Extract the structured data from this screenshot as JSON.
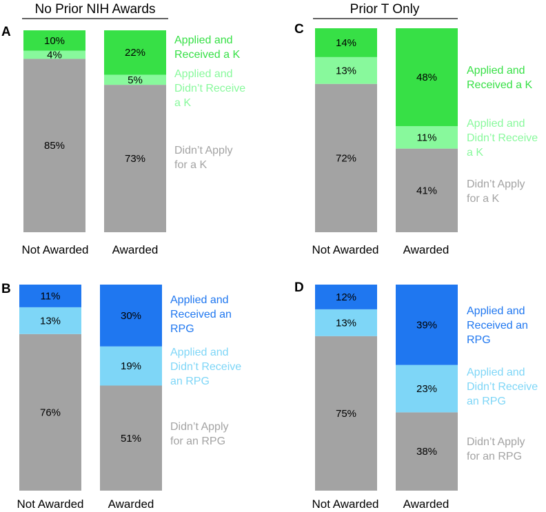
{
  "headers": {
    "left": "No Prior NIH Awards",
    "right": "Prior T Only"
  },
  "chart_data": [
    {
      "panel": "A",
      "type": "bar",
      "stacked": true,
      "categories": [
        "Not Awarded",
        "Awarded"
      ],
      "series": [
        {
          "name": "Didn't Apply for a K",
          "values": [
            85,
            73
          ],
          "color": "#a3a3a3",
          "labels": [
            "85%",
            "73%"
          ]
        },
        {
          "name": "Applied and Didn't Receive a K",
          "values": [
            4,
            5
          ],
          "color": "#88f99c",
          "labels": [
            "4%",
            "5%"
          ]
        },
        {
          "name": "Applied and Received a K",
          "values": [
            10,
            22
          ],
          "color": "#37e046",
          "labels": [
            "10%",
            "22%"
          ]
        }
      ],
      "legend": [
        {
          "lines": [
            "Applied and",
            "Received a K"
          ],
          "color": "#37e046"
        },
        {
          "lines": [
            "Applied and",
            "Didn’t Receive",
            "a K"
          ],
          "color": "#88f99c"
        },
        {
          "lines": [
            "Didn’t Apply",
            "for a K"
          ],
          "color": "#a3a3a3"
        }
      ],
      "ylim": [
        0,
        100
      ]
    },
    {
      "panel": "B",
      "type": "bar",
      "stacked": true,
      "categories": [
        "Not Awarded",
        "Awarded"
      ],
      "series": [
        {
          "name": "Didn't Apply for an RPG",
          "values": [
            76,
            51
          ],
          "color": "#a3a3a3",
          "labels": [
            "76%",
            "51%"
          ]
        },
        {
          "name": "Applied and Didn't Receive an RPG",
          "values": [
            13,
            19
          ],
          "color": "#7ed6f7",
          "labels": [
            "13%",
            "19%"
          ]
        },
        {
          "name": "Applied and Received an RPG",
          "values": [
            11,
            30
          ],
          "color": "#1f77f0",
          "labels": [
            "11%",
            "30%"
          ]
        }
      ],
      "legend": [
        {
          "lines": [
            "Applied and",
            "Received an",
            "RPG"
          ],
          "color": "#1f77f0"
        },
        {
          "lines": [
            "Applied and",
            "Didn’t Receive",
            "an RPG"
          ],
          "color": "#7ed6f7"
        },
        {
          "lines": [
            "Didn’t Apply",
            "for an RPG"
          ],
          "color": "#a3a3a3"
        }
      ],
      "ylim": [
        0,
        100
      ]
    },
    {
      "panel": "C",
      "type": "bar",
      "stacked": true,
      "categories": [
        "Not Awarded",
        "Awarded"
      ],
      "series": [
        {
          "name": "Didn't Apply for a K",
          "values": [
            72,
            41
          ],
          "color": "#a3a3a3",
          "labels": [
            "72%",
            "41%"
          ]
        },
        {
          "name": "Applied and Didn't Receive a K",
          "values": [
            13,
            11
          ],
          "color": "#88f99c",
          "labels": [
            "13%",
            "11%"
          ]
        },
        {
          "name": "Applied and Received a K",
          "values": [
            14,
            48
          ],
          "color": "#37e046",
          "labels": [
            "14%",
            "48%"
          ]
        }
      ],
      "legend": [
        {
          "lines": [
            "Applied and",
            "Received a K"
          ],
          "color": "#37e046"
        },
        {
          "lines": [
            "Applied and",
            "Didn’t Receive",
            "a K"
          ],
          "color": "#88f99c"
        },
        {
          "lines": [
            "Didn’t Apply",
            "for a K"
          ],
          "color": "#a3a3a3"
        }
      ],
      "ylim": [
        0,
        100
      ]
    },
    {
      "panel": "D",
      "type": "bar",
      "stacked": true,
      "categories": [
        "Not Awarded",
        "Awarded"
      ],
      "series": [
        {
          "name": "Didn't Apply for an RPG",
          "values": [
            75,
            38
          ],
          "color": "#a3a3a3",
          "labels": [
            "75%",
            "38%"
          ]
        },
        {
          "name": "Applied and Didn't Receive an RPG",
          "values": [
            13,
            23
          ],
          "color": "#7ed6f7",
          "labels": [
            "13%",
            "23%"
          ]
        },
        {
          "name": "Applied and Received an RPG",
          "values": [
            12,
            39
          ],
          "color": "#1f77f0",
          "labels": [
            "12%",
            "39%"
          ]
        }
      ],
      "legend": [
        {
          "lines": [
            "Applied and",
            "Received an",
            "RPG"
          ],
          "color": "#1f77f0"
        },
        {
          "lines": [
            "Applied and",
            "Didn’t Receive",
            "an RPG"
          ],
          "color": "#7ed6f7"
        },
        {
          "lines": [
            "Didn’t Apply",
            "for an RPG"
          ],
          "color": "#a3a3a3"
        }
      ],
      "ylim": [
        0,
        100
      ]
    }
  ]
}
